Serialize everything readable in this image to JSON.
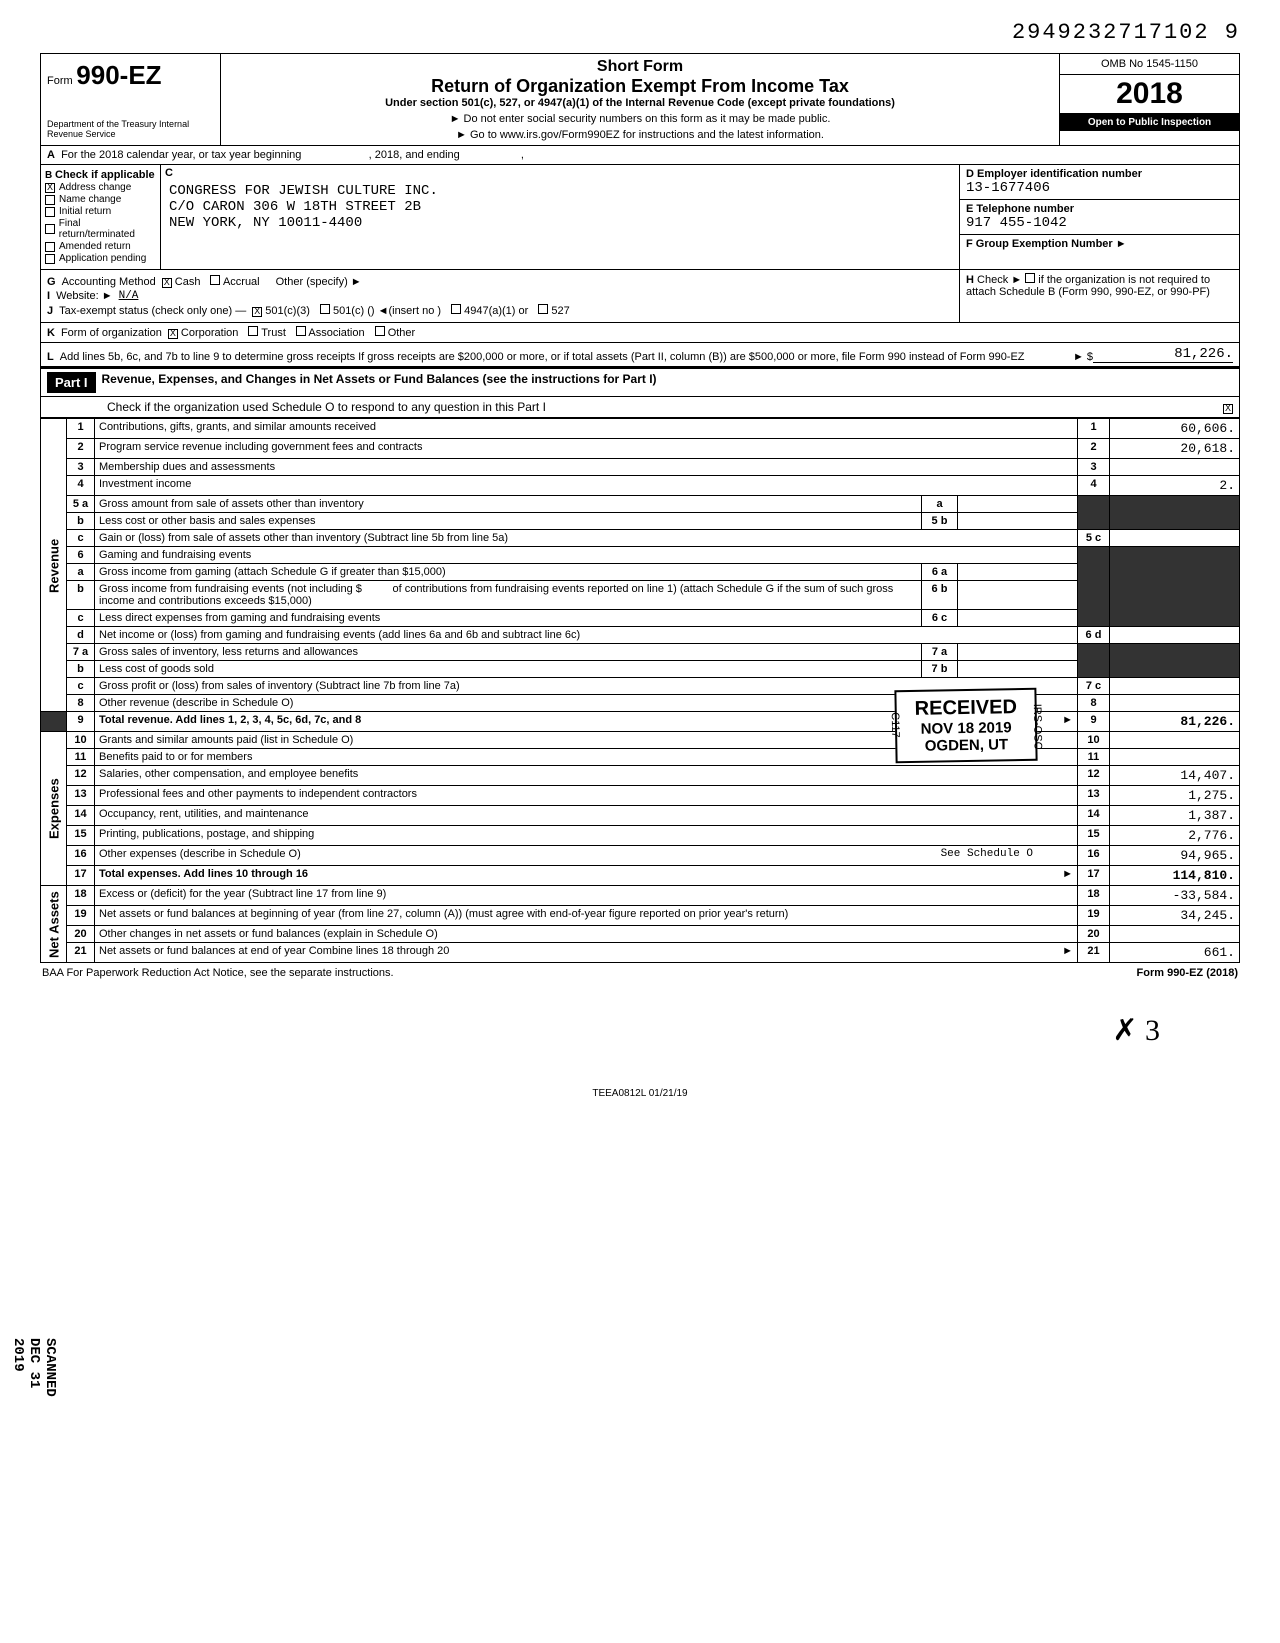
{
  "dln": "2949232717102 9",
  "header": {
    "form_prefix": "Form",
    "form_number": "990-EZ",
    "dept": "Department of the Treasury\nInternal Revenue Service",
    "title1": "Short Form",
    "title2": "Return of Organization Exempt From Income Tax",
    "subtitle": "Under section 501(c), 527, or 4947(a)(1) of the Internal Revenue Code (except private foundations)",
    "note1": "► Do not enter social security numbers on this form as it may be made public.",
    "note2": "► Go to www.irs.gov/Form990EZ for instructions and the latest information.",
    "omb": "OMB No 1545-1150",
    "year": "2018",
    "open_public": "Open to Public Inspection"
  },
  "line_a": {
    "label": "A",
    "text_pre": "For the 2018 calendar year, or tax year beginning",
    "text_mid": ", 2018, and ending",
    "text_end": ","
  },
  "section_b": {
    "label": "B",
    "header": "Check if applicable",
    "items": [
      {
        "label": "Address change",
        "checked": true
      },
      {
        "label": "Name change",
        "checked": false
      },
      {
        "label": "Initial return",
        "checked": false
      },
      {
        "label": "Final return/terminated",
        "checked": false
      },
      {
        "label": "Amended return",
        "checked": false
      },
      {
        "label": "Application pending",
        "checked": false
      }
    ]
  },
  "section_c": {
    "label": "C",
    "org_name": "CONGRESS FOR JEWISH CULTURE INC.",
    "addr1": "C/O CARON 306 W 18TH STREET 2B",
    "addr2": "NEW YORK, NY 10011-4400"
  },
  "section_d": {
    "label": "D",
    "header": "Employer identification number",
    "value": "13-1677406"
  },
  "section_e": {
    "label": "E",
    "header": "Telephone number",
    "value": "917 455-1042"
  },
  "section_f": {
    "label": "F",
    "header": "Group Exemption Number ►",
    "value": ""
  },
  "line_g": {
    "label": "G",
    "text": "Accounting Method",
    "options": [
      {
        "label": "Cash",
        "checked": true
      },
      {
        "label": "Accrual",
        "checked": false
      }
    ],
    "other": "Other (specify) ►"
  },
  "line_h": {
    "label": "H",
    "text": "Check ►",
    "suffix": "if the organization is not required to attach Schedule B (Form 990, 990-EZ, or 990-PF)"
  },
  "line_i": {
    "label": "I",
    "text": "Website: ►",
    "value": "N/A"
  },
  "line_j": {
    "label": "J",
    "text": "Tax-exempt status (check only one) —",
    "options": [
      {
        "label": "501(c)(3)",
        "checked": true
      },
      {
        "label": "501(c) (",
        "checked": false,
        "suffix": ") ◄(insert no )"
      },
      {
        "label": "4947(a)(1) or",
        "checked": false
      },
      {
        "label": "527",
        "checked": false
      }
    ]
  },
  "line_k": {
    "label": "K",
    "text": "Form of organization",
    "options": [
      {
        "label": "Corporation",
        "checked": true
      },
      {
        "label": "Trust",
        "checked": false
      },
      {
        "label": "Association",
        "checked": false
      },
      {
        "label": "Other",
        "checked": false
      }
    ]
  },
  "line_l": {
    "label": "L",
    "text": "Add lines 5b, 6c, and 7b to line 9 to determine gross receipts  If gross receipts are $200,000 or more, or if total assets (Part II, column (B)) are $500,000 or more, file Form 990 instead of Form 990-EZ",
    "amount_prefix": "► $",
    "amount": "81,226."
  },
  "part1": {
    "header_label": "Part I",
    "header_text": "Revenue, Expenses, and Changes in Net Assets or Fund Balances (see the instructions for Part I)",
    "check_text": "Check if the organization used Schedule O to respond to any question in this Part I",
    "check_checked": true
  },
  "side_labels": {
    "revenue": "Revenue",
    "expenses": "Expenses",
    "netassets": "Net Assets"
  },
  "scanned_stamp": "SCANNED DEC 31 2019",
  "lines": {
    "1": {
      "num": "1",
      "desc": "Contributions, gifts, grants, and similar amounts received",
      "amt": "60,606."
    },
    "2": {
      "num": "2",
      "desc": "Program service revenue including government fees and contracts",
      "amt": "20,618."
    },
    "3": {
      "num": "3",
      "desc": "Membership dues and assessments",
      "amt": ""
    },
    "4": {
      "num": "4",
      "desc": "Investment income",
      "amt": "2."
    },
    "5a": {
      "num": "5 a",
      "desc": "Gross amount from sale of assets other than inventory",
      "sub": "a",
      "subval": ""
    },
    "5b": {
      "num": "b",
      "desc": "Less  cost or other basis and sales expenses",
      "sub": "5 b",
      "subval": ""
    },
    "5c": {
      "num": "c",
      "desc": "Gain or (loss) from sale of assets other than inventory (Subtract line 5b from line 5a)",
      "amtnum": "5 c",
      "amt": ""
    },
    "6": {
      "num": "6",
      "desc": "Gaming and fundraising events"
    },
    "6a": {
      "num": "a",
      "desc": "Gross income from gaming (attach Schedule G if greater than $15,000)",
      "sub": "6 a",
      "subval": ""
    },
    "6b": {
      "num": "b",
      "desc_pre": "Gross income from fundraising events (not including $",
      "desc_post": "of contributions from fundraising events reported on line 1) (attach Schedule G if the sum of such gross income and contributions exceeds $15,000)",
      "sub": "6 b",
      "subval": ""
    },
    "6c": {
      "num": "c",
      "desc": "Less  direct expenses from gaming and fundraising events",
      "sub": "6 c",
      "subval": ""
    },
    "6d": {
      "num": "d",
      "desc": "Net income or (loss) from gaming and fundraising events (add lines 6a and 6b and subtract line 6c)",
      "amtnum": "6 d",
      "amt": ""
    },
    "7a": {
      "num": "7 a",
      "desc": "Gross sales of inventory, less returns and allowances",
      "sub": "7 a",
      "subval": ""
    },
    "7b": {
      "num": "b",
      "desc": "Less  cost of goods sold",
      "sub": "7 b",
      "subval": ""
    },
    "7c": {
      "num": "c",
      "desc": "Gross profit or (loss) from sales of inventory (Subtract line 7b from line 7a)",
      "amtnum": "7 c",
      "amt": ""
    },
    "8": {
      "num": "8",
      "desc": "Other revenue (describe in Schedule O)",
      "amtnum": "8",
      "amt": ""
    },
    "9": {
      "num": "9",
      "desc": "Total revenue. Add lines 1, 2, 3, 4, 5c, 6d, 7c, and 8",
      "amtnum": "9",
      "amt": "81,226.",
      "arrow": "►"
    },
    "10": {
      "num": "10",
      "desc": "Grants and similar amounts paid (list in Schedule O)",
      "amtnum": "10",
      "amt": ""
    },
    "11": {
      "num": "11",
      "desc": "Benefits paid to or for members",
      "amtnum": "11",
      "amt": ""
    },
    "12": {
      "num": "12",
      "desc": "Salaries, other compensation, and employee benefits",
      "amtnum": "12",
      "amt": "14,407."
    },
    "13": {
      "num": "13",
      "desc": "Professional fees and other payments to independent contractors",
      "amtnum": "13",
      "amt": "1,275."
    },
    "14": {
      "num": "14",
      "desc": "Occupancy, rent, utilities, and maintenance",
      "amtnum": "14",
      "amt": "1,387."
    },
    "15": {
      "num": "15",
      "desc": "Printing, publications, postage, and shipping",
      "amtnum": "15",
      "amt": "2,776."
    },
    "16": {
      "num": "16",
      "desc": "Other expenses (describe in Schedule O)",
      "note": "See Schedule O",
      "amtnum": "16",
      "amt": "94,965."
    },
    "17": {
      "num": "17",
      "desc": "Total expenses. Add lines 10 through 16",
      "amtnum": "17",
      "amt": "114,810.",
      "arrow": "►"
    },
    "18": {
      "num": "18",
      "desc": "Excess or (deficit) for the year (Subtract line 17 from line 9)",
      "amtnum": "18",
      "amt": "-33,584."
    },
    "19": {
      "num": "19",
      "desc": "Net assets or fund balances at beginning of year (from line 27, column (A)) (must agree with end-of-year figure reported on prior year's return)",
      "amtnum": "19",
      "amt": "34,245."
    },
    "20": {
      "num": "20",
      "desc": "Other changes in net assets or fund balances (explain in Schedule O)",
      "amtnum": "20",
      "amt": ""
    },
    "21": {
      "num": "21",
      "desc": "Net assets or fund balances at end of year  Combine lines 18 through 20",
      "amtnum": "21",
      "amt": "661.",
      "arrow": "►"
    }
  },
  "stamp": {
    "received": "RECEIVED",
    "date": "NOV 18 2019",
    "office": "OGDEN, UT",
    "code1": "C117",
    "code2": "IRS-OSC"
  },
  "footer": {
    "left": "BAA  For Paperwork Reduction Act Notice, see the separate instructions.",
    "right": "Form 990-EZ (2018)",
    "teea": "TEEA0812L  01/21/19"
  },
  "signature_glyph": "✗   3",
  "colors": {
    "text": "#000000",
    "bg": "#ffffff",
    "shaded": "#333333",
    "invert_bg": "#000000",
    "invert_fg": "#ffffff"
  }
}
